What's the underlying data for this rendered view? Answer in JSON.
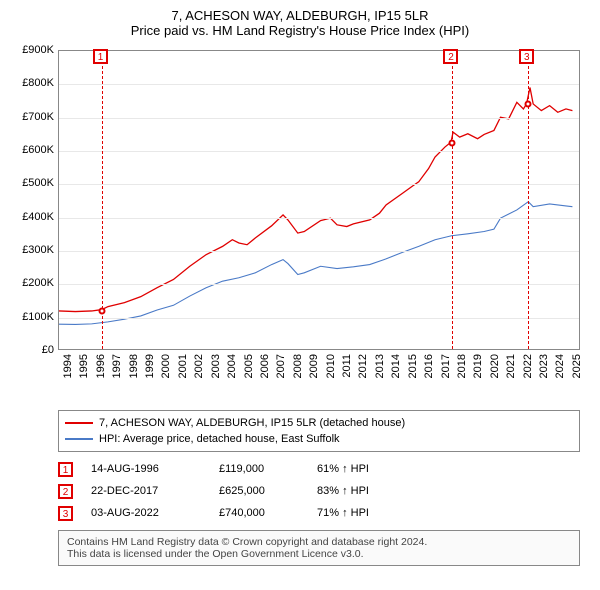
{
  "title": {
    "line1": "7, ACHESON WAY, ALDEBURGH, IP15 5LR",
    "line2": "Price paid vs. HM Land Registry's House Price Index (HPI)"
  },
  "chart": {
    "type": "line",
    "background_color": "#ffffff",
    "grid_color": "#e8e8e8",
    "axis_color": "#888888",
    "xlim": [
      1994,
      2025.8
    ],
    "ylim": [
      0,
      900000
    ],
    "ytick_step": 100000,
    "ytick_labels": [
      "£0",
      "£100K",
      "£200K",
      "£300K",
      "£400K",
      "£500K",
      "£600K",
      "£700K",
      "£800K",
      "£900K"
    ],
    "xtick_years": [
      1994,
      1995,
      1996,
      1997,
      1998,
      1999,
      2000,
      2001,
      2002,
      2003,
      2004,
      2005,
      2006,
      2007,
      2008,
      2009,
      2010,
      2011,
      2012,
      2013,
      2014,
      2015,
      2016,
      2017,
      2018,
      2019,
      2020,
      2021,
      2022,
      2023,
      2024,
      2025
    ],
    "label_fontsize": 11,
    "series": [
      {
        "name": "property",
        "label": "7, ACHESON WAY, ALDEBURGH, IP15 5LR (detached house)",
        "color": "#e00000",
        "line_width": 1.3,
        "data": [
          [
            1994,
            115000
          ],
          [
            1995,
            113000
          ],
          [
            1996,
            115000
          ],
          [
            1996.62,
            119000
          ],
          [
            1997,
            128000
          ],
          [
            1998,
            140000
          ],
          [
            1999,
            158000
          ],
          [
            2000,
            185000
          ],
          [
            2001,
            210000
          ],
          [
            2002,
            250000
          ],
          [
            2003,
            285000
          ],
          [
            2004,
            310000
          ],
          [
            2004.6,
            330000
          ],
          [
            2005,
            320000
          ],
          [
            2005.5,
            315000
          ],
          [
            2006,
            335000
          ],
          [
            2007,
            372000
          ],
          [
            2007.7,
            405000
          ],
          [
            2008,
            390000
          ],
          [
            2008.6,
            350000
          ],
          [
            2009,
            355000
          ],
          [
            2010,
            388000
          ],
          [
            2010.6,
            395000
          ],
          [
            2011,
            375000
          ],
          [
            2011.6,
            370000
          ],
          [
            2012,
            378000
          ],
          [
            2013,
            390000
          ],
          [
            2013.6,
            410000
          ],
          [
            2014,
            435000
          ],
          [
            2015,
            470000
          ],
          [
            2015.7,
            495000
          ],
          [
            2016,
            505000
          ],
          [
            2016.6,
            545000
          ],
          [
            2017,
            580000
          ],
          [
            2017.6,
            610000
          ],
          [
            2017.97,
            625000
          ],
          [
            2018.1,
            655000
          ],
          [
            2018.5,
            640000
          ],
          [
            2019,
            650000
          ],
          [
            2019.6,
            635000
          ],
          [
            2020,
            648000
          ],
          [
            2020.6,
            660000
          ],
          [
            2021,
            700000
          ],
          [
            2021.5,
            695000
          ],
          [
            2022,
            745000
          ],
          [
            2022.4,
            725000
          ],
          [
            2022.59,
            740000
          ],
          [
            2022.8,
            790000
          ],
          [
            2023,
            740000
          ],
          [
            2023.5,
            720000
          ],
          [
            2024,
            735000
          ],
          [
            2024.5,
            715000
          ],
          [
            2025,
            725000
          ],
          [
            2025.4,
            720000
          ]
        ]
      },
      {
        "name": "hpi",
        "label": "HPI: Average price, detached house, East Suffolk",
        "color": "#4a7ac7",
        "line_width": 1.1,
        "data": [
          [
            1994,
            75000
          ],
          [
            1995,
            74000
          ],
          [
            1996,
            76000
          ],
          [
            1997,
            82000
          ],
          [
            1998,
            90000
          ],
          [
            1999,
            100000
          ],
          [
            2000,
            118000
          ],
          [
            2001,
            132000
          ],
          [
            2002,
            160000
          ],
          [
            2003,
            185000
          ],
          [
            2004,
            205000
          ],
          [
            2005,
            215000
          ],
          [
            2006,
            230000
          ],
          [
            2007,
            255000
          ],
          [
            2007.7,
            270000
          ],
          [
            2008,
            258000
          ],
          [
            2008.6,
            225000
          ],
          [
            2009,
            230000
          ],
          [
            2010,
            250000
          ],
          [
            2011,
            243000
          ],
          [
            2012,
            248000
          ],
          [
            2013,
            255000
          ],
          [
            2014,
            272000
          ],
          [
            2015,
            292000
          ],
          [
            2016,
            310000
          ],
          [
            2017,
            330000
          ],
          [
            2018,
            342000
          ],
          [
            2019,
            348000
          ],
          [
            2020,
            355000
          ],
          [
            2020.6,
            362000
          ],
          [
            2021,
            395000
          ],
          [
            2022,
            420000
          ],
          [
            2022.7,
            445000
          ],
          [
            2023,
            430000
          ],
          [
            2024,
            438000
          ],
          [
            2025,
            432000
          ],
          [
            2025.4,
            430000
          ]
        ]
      }
    ],
    "event_lines": [
      {
        "x": 1996.62,
        "color": "#e00000"
      },
      {
        "x": 2017.97,
        "color": "#e00000"
      },
      {
        "x": 2022.59,
        "color": "#e00000"
      }
    ],
    "sale_markers": [
      {
        "n": "1",
        "x": 1996.62,
        "y": 119000,
        "color": "#e00000"
      },
      {
        "n": "2",
        "x": 2017.97,
        "y": 625000,
        "color": "#e00000"
      },
      {
        "n": "3",
        "x": 2022.59,
        "y": 740000,
        "color": "#e00000"
      }
    ]
  },
  "legend": {
    "items": [
      {
        "color": "#e00000",
        "label": "7, ACHESON WAY, ALDEBURGH, IP15 5LR (detached house)"
      },
      {
        "color": "#4a7ac7",
        "label": "HPI: Average price, detached house, East Suffolk"
      }
    ]
  },
  "sales": [
    {
      "n": "1",
      "color": "#e00000",
      "date": "14-AUG-1996",
      "price": "£119,000",
      "pct": "61% ↑ HPI"
    },
    {
      "n": "2",
      "color": "#e00000",
      "date": "22-DEC-2017",
      "price": "£625,000",
      "pct": "83% ↑ HPI"
    },
    {
      "n": "3",
      "color": "#e00000",
      "date": "03-AUG-2022",
      "price": "£740,000",
      "pct": "71% ↑ HPI"
    }
  ],
  "attribution": {
    "line1": "Contains HM Land Registry data © Crown copyright and database right 2024.",
    "line2": "This data is licensed under the Open Government Licence v3.0."
  }
}
